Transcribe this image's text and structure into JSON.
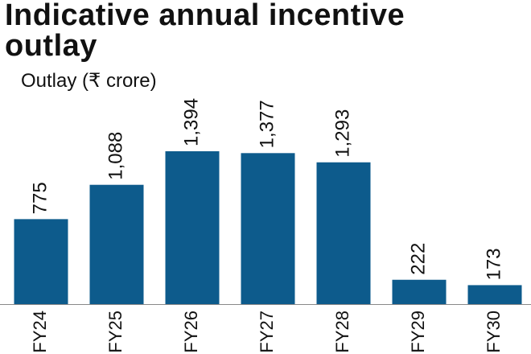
{
  "chart_data": {
    "type": "bar",
    "title": "Indicative annual incentive outlay",
    "subtitle": "Outlay (₹ crore)",
    "categories": [
      "FY24",
      "FY25",
      "FY26",
      "FY27",
      "FY28",
      "FY29",
      "FY30"
    ],
    "values": [
      775,
      1088,
      1394,
      1377,
      1293,
      222,
      173
    ],
    "value_labels": [
      "775",
      "1,088",
      "1,394",
      "1,377",
      "1,293",
      "222",
      "173"
    ],
    "color": "#0d5b8c"
  }
}
